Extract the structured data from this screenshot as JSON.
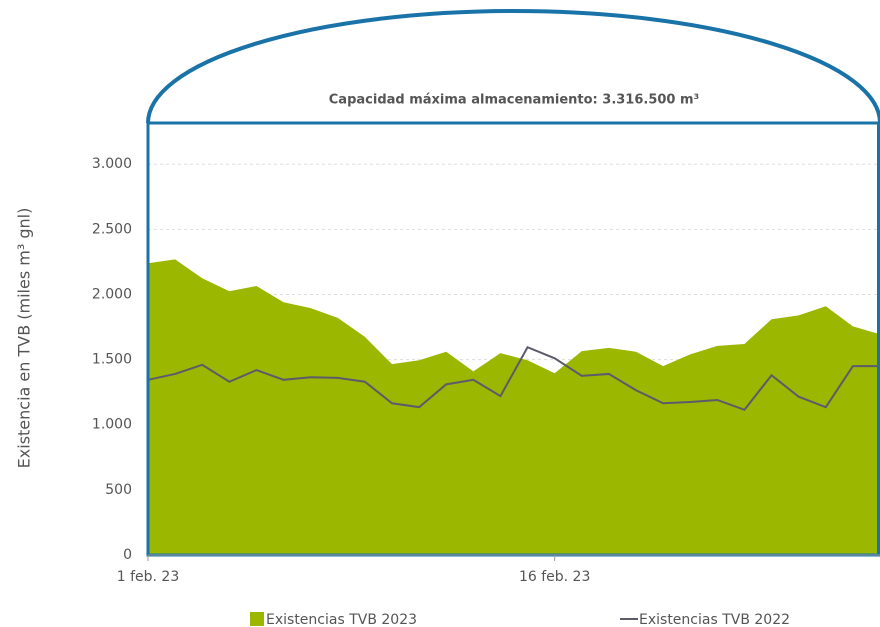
{
  "chart_data": {
    "type": "area",
    "annotation": "Capacidad máxima almacenamiento: 3.316.500 m³",
    "y_label": "Existencia en TVB (miles m³ gnl)",
    "categories": [
      "1 feb. 23",
      null,
      null,
      null,
      null,
      null,
      null,
      null,
      null,
      null,
      null,
      null,
      null,
      null,
      null,
      "16 feb. 23",
      null,
      null,
      null,
      null,
      null,
      null,
      null,
      null,
      null,
      null,
      null,
      null
    ],
    "series": [
      {
        "name": "Existencias TVB 2023",
        "color": "#9bb700",
        "kind": "area",
        "values": [
          2240,
          2270,
          2125,
          2025,
          2065,
          1940,
          1895,
          1820,
          1675,
          1465,
          1495,
          1560,
          1410,
          1550,
          1495,
          1395,
          1565,
          1590,
          1560,
          1450,
          1540,
          1605,
          1620,
          1810,
          1840,
          1910,
          1755,
          1695
        ]
      },
      {
        "name": "Existencias TVB 2022",
        "color": "#5b5b6b",
        "kind": "line",
        "values": [
          1345,
          1390,
          1460,
          1330,
          1420,
          1345,
          1365,
          1360,
          1330,
          1165,
          1135,
          1310,
          1345,
          1220,
          1595,
          1510,
          1375,
          1390,
          1265,
          1165,
          1175,
          1190,
          1115,
          1380,
          1215,
          1135,
          1450,
          1450
        ]
      }
    ],
    "ylim": [
      0,
      3316.5
    ],
    "yticks": [
      0,
      500,
      {
        "value": 1000,
        "label": "1.000"
      },
      {
        "value": 1500,
        "label": "1.500"
      },
      {
        "value": 2000,
        "label": "2.000"
      },
      {
        "value": 2500,
        "label": "2.500"
      },
      {
        "value": 3000,
        "label": "3.000"
      }
    ],
    "grid": true,
    "frame_color": "#1a73a8"
  }
}
